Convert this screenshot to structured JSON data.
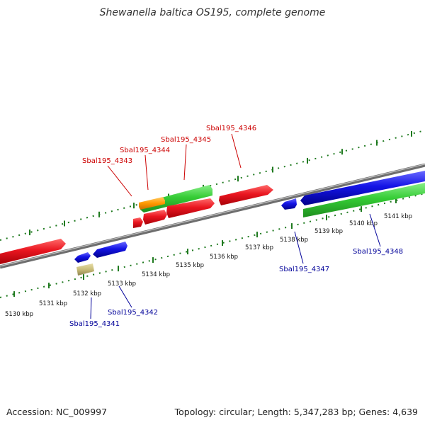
{
  "title": "Shewanella baltica OS195, complete genome",
  "accession": "Accession: NC_009997",
  "summary": "Topology: circular; Length: 5,347,283 bp; Genes: 4,639",
  "colors": {
    "forward_label": "#cc0000",
    "reverse_label": "#000099",
    "backbone": "#8a8a8a",
    "ticks": "#1f7a1f",
    "cds_red": "#e8141e",
    "cds_blue": "#1212e0",
    "cds_green": "#33cc33",
    "cds_orange": "#ff9900",
    "cds_khaki": "#c8bc78"
  },
  "scale_labels": [
    "5130 kbp",
    "5131 kbp",
    "5132 kbp",
    "5133 kbp",
    "5134 kbp",
    "5135 kbp",
    "5136 kbp",
    "5137 kbp",
    "5138 kbp",
    "5139 kbp",
    "5140 kbp",
    "5141 kbp"
  ],
  "gene_labels_forward": [
    "Sbal195_4343",
    "Sbal195_4344",
    "Sbal195_4345",
    "Sbal195_4346"
  ],
  "gene_labels_reverse": [
    "Sbal195_4341",
    "Sbal195_4342",
    "Sbal195_4347",
    "Sbal195_4348"
  ]
}
